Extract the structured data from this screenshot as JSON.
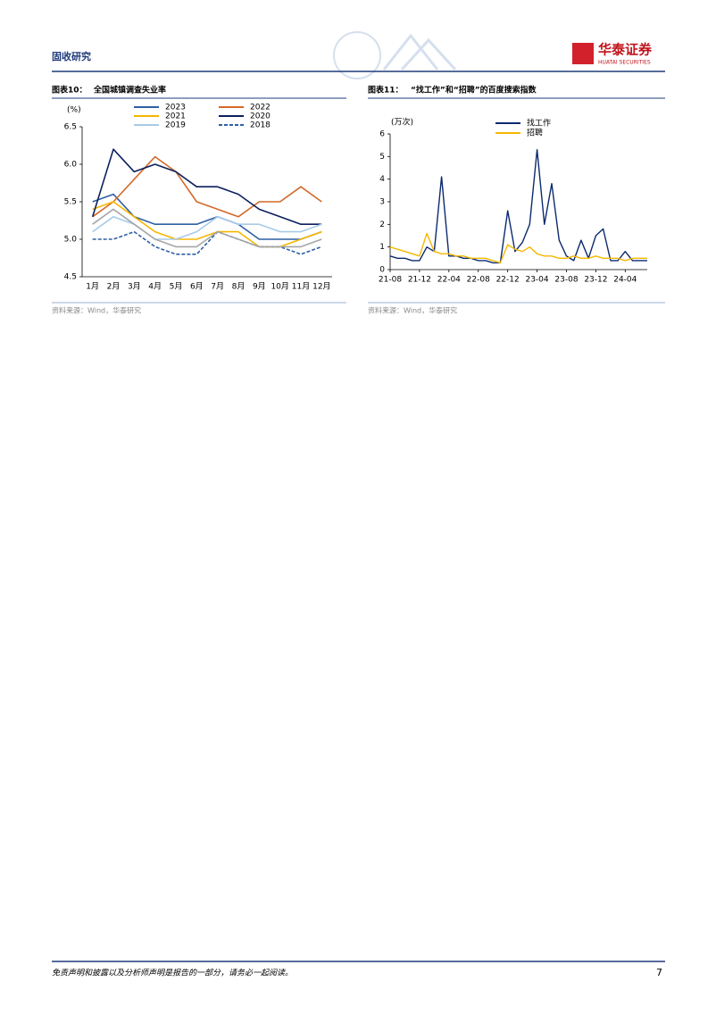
{
  "header": {
    "section": "固收研究",
    "logo_cn": "华泰证券",
    "logo_en": "HUATAI SECURITIES"
  },
  "chart_data": [
    {
      "type": "line",
      "label": "图表10：",
      "title": "全国城镇调查失业率",
      "y_unit": "(%)",
      "source": "资料来源：Wind，华泰研究",
      "categories": [
        "1月",
        "2月",
        "3月",
        "4月",
        "5月",
        "6月",
        "7月",
        "8月",
        "9月",
        "10月",
        "11月",
        "12月"
      ],
      "ylim": [
        4.5,
        6.5
      ],
      "yticks": [
        4.5,
        {
          "value": 5,
          "label": "5.0"
        },
        5.5,
        {
          "value": 6,
          "label": "6.0"
        },
        6.5
      ],
      "series": [
        {
          "name": "2023",
          "color": "#2e5fa3",
          "values": [
            5.5,
            5.6,
            5.3,
            5.2,
            5.2,
            5.2,
            5.3,
            5.2,
            5.0,
            5.0,
            5.0,
            5.1
          ]
        },
        {
          "name": "2022",
          "color": "#d4692a",
          "values": [
            5.3,
            5.5,
            5.8,
            6.1,
            5.9,
            5.5,
            5.4,
            5.3,
            5.5,
            5.5,
            5.7,
            5.5
          ]
        },
        {
          "name": "2021",
          "color": "#f5b800",
          "values": [
            5.4,
            5.5,
            5.3,
            5.1,
            5.0,
            5.0,
            5.1,
            5.1,
            4.9,
            4.9,
            5.0,
            5.1
          ]
        },
        {
          "name": "2020",
          "color": "#0b1f5c",
          "values": [
            5.3,
            6.2,
            5.9,
            6.0,
            5.9,
            5.7,
            5.7,
            5.6,
            5.4,
            5.3,
            5.2,
            5.2
          ]
        },
        {
          "name": "2019",
          "color": "#a7cbe8",
          "values": [
            5.1,
            5.3,
            5.2,
            5.0,
            5.0,
            5.1,
            5.3,
            5.2,
            5.2,
            5.1,
            5.1,
            5.2
          ]
        },
        {
          "name": "2018",
          "color": "#2e5fa3",
          "dash": true,
          "values": [
            5.0,
            5.0,
            5.1,
            4.9,
            4.8,
            4.8,
            5.1,
            5.0,
            4.9,
            4.9,
            4.8,
            4.9
          ]
        },
        {
          "color": "#a6a6a6",
          "values": [
            5.2,
            5.4,
            5.2,
            5.0,
            4.9,
            4.9,
            5.1,
            5.0,
            4.9,
            4.9,
            4.9,
            5.0
          ]
        }
      ]
    },
    {
      "type": "line",
      "label": "图表11：",
      "title": "“找工作”和“招聘”的百度搜索指数",
      "y_unit": "(万次)",
      "source": "资料来源：Wind，华泰研究",
      "x": [
        "21-08",
        "21-09",
        "21-10",
        "21-11",
        "21-12",
        "22-01",
        "22-02",
        "22-03",
        "22-04",
        "22-05",
        "22-06",
        "22-07",
        "22-08",
        "22-09",
        "22-10",
        "22-11",
        "22-12",
        "23-01",
        "23-02",
        "23-03",
        "23-04",
        "23-05",
        "23-06",
        "23-07",
        "23-08",
        "23-09",
        "23-10",
        "23-11",
        "23-12",
        "24-01",
        "24-02",
        "24-03",
        "24-04",
        "24-05",
        "24-06",
        "24-07"
      ],
      "xticks": [
        "21-08",
        "21-12",
        "22-04",
        "22-08",
        "22-12",
        "23-04",
        "23-08",
        "23-12",
        "24-04"
      ],
      "ylim": [
        0,
        6
      ],
      "yticks": [
        0,
        1,
        2,
        3,
        4,
        5,
        6
      ],
      "series": [
        {
          "name": "找工作",
          "color": "#0b2a6f",
          "values": [
            0.6,
            0.5,
            0.5,
            0.4,
            0.4,
            1.0,
            0.8,
            4.1,
            0.6,
            0.6,
            0.5,
            0.5,
            0.4,
            0.4,
            0.3,
            0.3,
            2.6,
            0.8,
            1.2,
            2.0,
            5.3,
            2.0,
            3.8,
            1.3,
            0.6,
            0.4,
            1.3,
            0.5,
            1.5,
            1.8,
            0.4,
            0.4,
            0.8,
            0.4,
            0.4,
            0.4
          ]
        },
        {
          "name": "招聘",
          "color": "#f5b800",
          "values": [
            1.0,
            0.9,
            0.8,
            0.7,
            0.6,
            1.6,
            0.8,
            0.7,
            0.7,
            0.6,
            0.6,
            0.5,
            0.5,
            0.5,
            0.4,
            0.3,
            1.1,
            0.9,
            0.8,
            1.0,
            0.7,
            0.6,
            0.6,
            0.5,
            0.5,
            0.6,
            0.5,
            0.5,
            0.6,
            0.5,
            0.5,
            0.5,
            0.4,
            0.5,
            0.5,
            0.5
          ]
        }
      ]
    }
  ],
  "footer": {
    "disclaimer": "免责声明和披露以及分析师声明是报告的一部分，请务必一起阅读。",
    "page": "7"
  }
}
